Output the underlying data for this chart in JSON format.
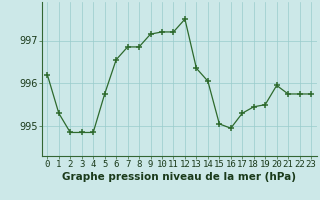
{
  "x": [
    0,
    1,
    2,
    3,
    4,
    5,
    6,
    7,
    8,
    9,
    10,
    11,
    12,
    13,
    14,
    15,
    16,
    17,
    18,
    19,
    20,
    21,
    22,
    23
  ],
  "y": [
    996.2,
    995.3,
    994.85,
    994.85,
    994.85,
    995.75,
    996.55,
    996.85,
    996.85,
    997.15,
    997.2,
    997.2,
    997.5,
    996.35,
    996.05,
    995.05,
    994.95,
    995.3,
    995.45,
    995.5,
    995.95,
    995.75,
    995.75,
    995.75
  ],
  "line_color": "#2d6a2d",
  "marker_color": "#2d6a2d",
  "bg_color": "#cce8e8",
  "grid_color": "#99cccc",
  "border_color": "#336633",
  "xlabel": "Graphe pression niveau de la mer (hPa)",
  "yticks": [
    995,
    996,
    997
  ],
  "ylim": [
    994.3,
    997.9
  ],
  "xlim": [
    -0.5,
    23.5
  ],
  "title_color": "#1a3a1a",
  "xlabel_fontsize": 7.5,
  "tick_fontsize": 6.5
}
